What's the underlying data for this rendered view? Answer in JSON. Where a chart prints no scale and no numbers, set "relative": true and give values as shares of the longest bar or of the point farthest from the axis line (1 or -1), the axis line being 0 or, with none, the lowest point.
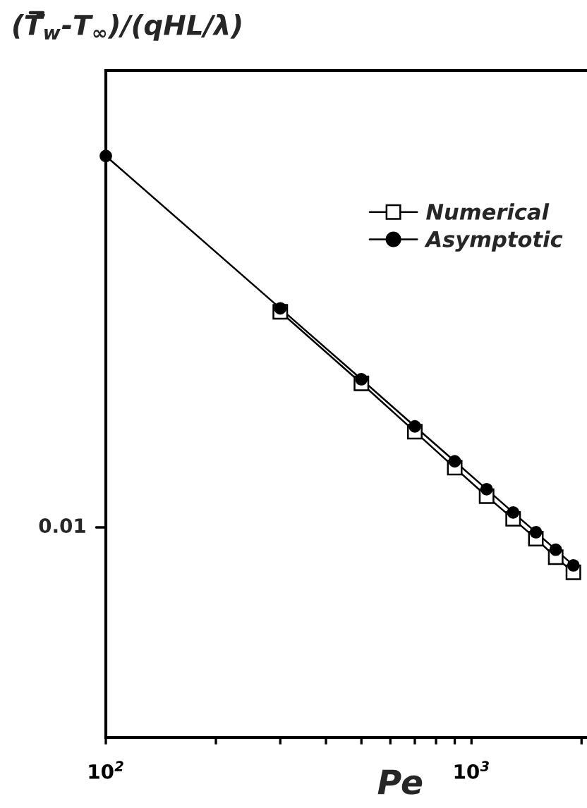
{
  "chart_data": {
    "type": "line",
    "ylabel": "(T̄$_{w}$-T$_{∞}$)/(qHL/λ)",
    "xlabel": "Pe",
    "log": "x",
    "relative": true,
    "x": [
      100,
      300,
      500,
      700,
      900,
      1100,
      1300,
      1500,
      1700,
      1900
    ],
    "series": [
      {
        "name": "Numerical",
        "color": "#000000",
        "marker": "square",
        "values": [
          null,
          0.732,
          0.609,
          0.526,
          0.464,
          0.415,
          0.376,
          0.342,
          0.31,
          0.284
        ]
      },
      {
        "name": "Asymptotic",
        "color": "#000000",
        "marker": "circle",
        "values": [
          1,
          0.738,
          0.616,
          0.535,
          0.475,
          0.427,
          0.387,
          0.353,
          0.323,
          0.296
        ]
      }
    ],
    "annotations": [
      "0.01"
    ],
    "xlim": [
      100,
      2070
    ],
    "xticks": [
      {
        "value": 100,
        "label": "10$^{2}$"
      },
      {
        "value": 200,
        "label": null
      },
      {
        "value": 300,
        "label": null
      },
      {
        "value": 400,
        "label": null
      },
      {
        "value": 500,
        "label": null
      },
      {
        "value": 600,
        "label": null
      },
      {
        "value": 700,
        "label": null
      },
      {
        "value": 800,
        "label": null
      },
      {
        "value": 900,
        "label": null
      },
      {
        "value": 1000,
        "label": "10$^{3}$"
      },
      {
        "value": 2000,
        "label": null
      }
    ],
    "legend": "top right",
    "line_style": "solid",
    "grid": false
  }
}
